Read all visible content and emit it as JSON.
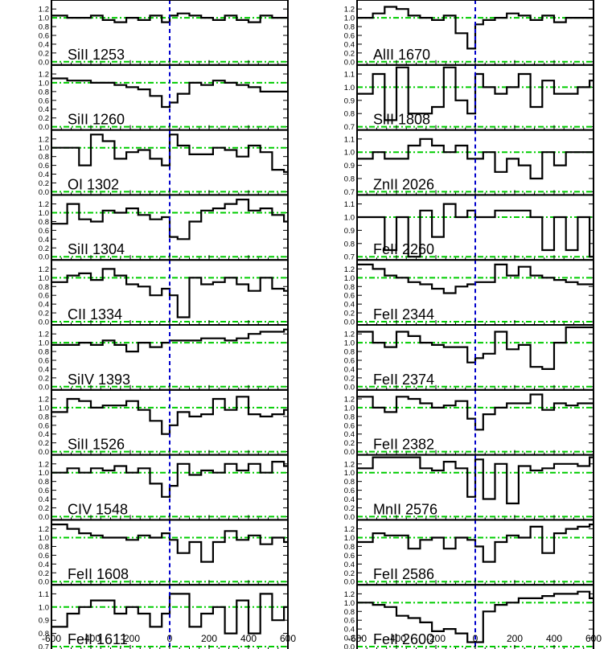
{
  "chart_data": {
    "type": "line",
    "layout": "velocity stack",
    "x_axis": {
      "range": [
        -600,
        600
      ],
      "tick_labels": [
        "-600",
        "-400",
        "-200",
        "0",
        "200",
        "400",
        "600"
      ]
    },
    "reference_lines": {
      "vertical_x": 0,
      "vertical_color": "#0000cc",
      "horizontal_color": "#00cc00"
    },
    "bins_x": [
      -600,
      -520,
      -460,
      -400,
      -340,
      -280,
      -220,
      -160,
      -100,
      -40,
      0,
      40,
      100,
      160,
      220,
      280,
      340,
      400,
      460,
      520,
      580,
      600
    ],
    "panels": [
      {
        "name": "SiII 1253",
        "column": "left",
        "ylim": [
          0.0,
          1.35
        ],
        "yticks": [
          "0.0",
          "0.2",
          "0.4",
          "0.6",
          "0.8",
          "1.0",
          "1.2"
        ],
        "hlines": [
          0.0,
          1.0
        ],
        "flux": [
          1.05,
          1.0,
          1.0,
          1.05,
          0.95,
          0.9,
          1.0,
          0.95,
          1.05,
          0.9,
          1.05,
          1.1,
          1.05,
          1.0,
          0.95,
          1.05,
          0.95,
          0.9,
          1.05,
          1.0,
          1.0
        ]
      },
      {
        "name": "SiII 1260",
        "column": "left",
        "ylim": [
          0.0,
          1.35
        ],
        "yticks": [
          "0.0",
          "0.2",
          "0.4",
          "0.6",
          "0.8",
          "1.0",
          "1.2"
        ],
        "hlines": [
          0.0,
          1.0
        ],
        "flux": [
          1.1,
          1.05,
          1.05,
          1.0,
          1.0,
          0.95,
          0.9,
          0.85,
          0.7,
          0.45,
          0.55,
          0.75,
          1.0,
          0.95,
          1.05,
          1.0,
          0.95,
          0.9,
          0.8,
          0.8,
          0.8
        ]
      },
      {
        "name": "OI 1302",
        "column": "left",
        "ylim": [
          0.0,
          1.35
        ],
        "yticks": [
          "0.0",
          "0.2",
          "0.4",
          "0.6",
          "0.8",
          "1.0",
          "1.2"
        ],
        "hlines": [
          0.0,
          1.0
        ],
        "flux": [
          1.0,
          1.0,
          0.6,
          1.3,
          1.15,
          0.75,
          0.9,
          0.95,
          0.75,
          0.6,
          1.3,
          1.05,
          0.85,
          0.85,
          1.0,
          0.95,
          0.8,
          1.05,
          0.9,
          0.5,
          0.45
        ]
      },
      {
        "name": "SiII 1304",
        "column": "left",
        "ylim": [
          0.0,
          1.35
        ],
        "yticks": [
          "0.0",
          "0.2",
          "0.4",
          "0.6",
          "0.8",
          "1.0",
          "1.2"
        ],
        "hlines": [
          0.0,
          1.0
        ],
        "flux": [
          0.75,
          1.2,
          0.85,
          0.8,
          1.05,
          1.0,
          1.1,
          0.95,
          0.85,
          0.9,
          0.45,
          0.4,
          0.8,
          1.05,
          1.1,
          1.2,
          1.3,
          1.05,
          1.1,
          0.95,
          0.8
        ]
      },
      {
        "name": "CII 1334",
        "column": "left",
        "ylim": [
          0.0,
          1.35
        ],
        "yticks": [
          "0.0",
          "0.2",
          "0.4",
          "0.6",
          "0.8",
          "1.0",
          "1.2"
        ],
        "hlines": [
          0.0,
          1.0
        ],
        "flux": [
          0.9,
          1.05,
          1.1,
          0.95,
          1.2,
          1.05,
          0.85,
          0.8,
          0.6,
          0.75,
          0.6,
          0.1,
          1.0,
          0.85,
          0.9,
          1.0,
          0.85,
          0.7,
          1.0,
          0.75,
          0.7
        ]
      },
      {
        "name": "SiIV 1393",
        "column": "left",
        "ylim": [
          0.0,
          1.35
        ],
        "yticks": [
          "0.0",
          "0.2",
          "0.4",
          "0.6",
          "0.8",
          "1.0",
          "1.2"
        ],
        "hlines": [
          0.0,
          1.0
        ],
        "flux": [
          0.95,
          0.95,
          1.0,
          0.95,
          1.05,
          0.95,
          0.8,
          1.0,
          0.9,
          1.0,
          1.05,
          1.05,
          1.05,
          1.1,
          1.1,
          1.05,
          1.1,
          1.2,
          1.25,
          1.25,
          1.3
        ]
      },
      {
        "name": "SiII 1526",
        "column": "left",
        "ylim": [
          0.0,
          1.35
        ],
        "yticks": [
          "0.0",
          "0.2",
          "0.4",
          "0.6",
          "0.8",
          "1.0",
          "1.2"
        ],
        "hlines": [
          0.0,
          1.0
        ],
        "flux": [
          0.9,
          1.2,
          1.15,
          1.0,
          1.05,
          1.05,
          1.15,
          0.95,
          0.7,
          0.4,
          0.6,
          0.9,
          0.8,
          0.85,
          1.2,
          0.95,
          1.25,
          0.85,
          0.8,
          0.85,
          0.95
        ]
      },
      {
        "name": "CIV 1548",
        "column": "left",
        "ylim": [
          0.0,
          1.35
        ],
        "yticks": [
          "0.0",
          "0.2",
          "0.4",
          "0.6",
          "0.8",
          "1.0",
          "1.2"
        ],
        "hlines": [
          0.0,
          1.0
        ],
        "flux": [
          1.0,
          1.1,
          1.0,
          1.1,
          1.05,
          1.15,
          1.0,
          1.1,
          0.75,
          0.45,
          0.7,
          1.2,
          0.95,
          1.05,
          1.0,
          1.2,
          1.05,
          1.2,
          1.0,
          1.25,
          1.15
        ]
      },
      {
        "name": "FeII 1608",
        "column": "left",
        "ylim": [
          0.0,
          1.35
        ],
        "yticks": [
          "0.0",
          "0.2",
          "0.4",
          "0.6",
          "0.8",
          "1.0",
          "1.2"
        ],
        "hlines": [
          0.0,
          1.0
        ],
        "flux": [
          1.3,
          1.2,
          1.1,
          1.05,
          1.0,
          1.0,
          0.95,
          1.05,
          1.0,
          1.1,
          0.95,
          0.65,
          0.9,
          0.45,
          0.9,
          1.15,
          0.95,
          1.05,
          0.85,
          1.0,
          0.9
        ]
      },
      {
        "name": "FeII 1611",
        "column": "left",
        "ylim": [
          0.7,
          1.15
        ],
        "yticks": [
          "0.7",
          "0.8",
          "0.9",
          "1.0",
          "1.1"
        ],
        "hlines": [
          0.7,
          1.0
        ],
        "flux": [
          0.85,
          0.95,
          1.0,
          1.05,
          1.05,
          0.95,
          1.0,
          0.95,
          0.85,
          0.95,
          1.1,
          1.1,
          0.85,
          0.95,
          1.0,
          0.8,
          1.05,
          0.8,
          1.1,
          0.9,
          1.0
        ]
      },
      {
        "name": "AlII 1670",
        "column": "right",
        "ylim": [
          0.0,
          1.35
        ],
        "yticks": [
          "0.0",
          "0.2",
          "0.4",
          "0.6",
          "0.8",
          "1.0",
          "1.2"
        ],
        "hlines": [
          0.0,
          1.0
        ],
        "flux": [
          1.0,
          1.1,
          1.25,
          1.2,
          1.05,
          1.0,
          0.95,
          1.05,
          0.65,
          0.3,
          0.85,
          0.95,
          1.0,
          1.1,
          1.05,
          0.95,
          1.05,
          0.9,
          1.0,
          1.0,
          1.0
        ]
      },
      {
        "name": "SiII 1808",
        "column": "right",
        "ylim": [
          0.7,
          1.15
        ],
        "yticks": [
          "0.7",
          "0.8",
          "0.9",
          "1.0",
          "1.1"
        ],
        "hlines": [
          0.7,
          1.0
        ],
        "flux": [
          0.95,
          1.1,
          0.75,
          1.15,
          0.8,
          0.8,
          0.85,
          1.15,
          0.9,
          0.8,
          1.1,
          1.0,
          0.95,
          1.0,
          1.1,
          0.85,
          1.05,
          0.95,
          0.95,
          1.0,
          1.05
        ]
      },
      {
        "name": "ZnII 2026",
        "column": "right",
        "ylim": [
          0.7,
          1.15
        ],
        "yticks": [
          "0.7",
          "0.8",
          "0.9",
          "1.0",
          "1.1"
        ],
        "hlines": [
          0.7,
          1.0
        ],
        "flux": [
          0.95,
          1.0,
          0.95,
          0.95,
          1.05,
          1.1,
          1.05,
          1.0,
          1.05,
          0.95,
          0.95,
          1.0,
          0.85,
          0.95,
          0.9,
          0.8,
          1.0,
          0.9,
          1.0,
          1.0,
          1.0
        ]
      },
      {
        "name": "FeII 2260",
        "column": "right",
        "ylim": [
          0.7,
          1.15
        ],
        "yticks": [
          "0.7",
          "0.8",
          "0.9",
          "1.0",
          "1.1"
        ],
        "hlines": [
          0.7,
          1.0
        ],
        "flux": [
          1.0,
          1.0,
          0.75,
          1.0,
          0.7,
          1.05,
          0.85,
          1.1,
          1.0,
          1.05,
          1.0,
          1.0,
          1.05,
          1.05,
          1.05,
          1.0,
          0.75,
          1.0,
          0.75,
          1.0,
          0.7
        ]
      },
      {
        "name": "FeII 2344",
        "column": "right",
        "ylim": [
          0.0,
          1.35
        ],
        "yticks": [
          "0.0",
          "0.2",
          "0.4",
          "0.6",
          "0.8",
          "1.0",
          "1.2"
        ],
        "hlines": [
          0.0,
          1.0
        ],
        "flux": [
          1.3,
          1.2,
          1.05,
          1.0,
          0.9,
          0.85,
          0.75,
          0.65,
          0.8,
          0.85,
          0.9,
          0.9,
          1.3,
          1.05,
          1.25,
          1.05,
          1.0,
          0.95,
          0.9,
          0.85,
          0.85
        ]
      },
      {
        "name": "FeII 2374",
        "column": "right",
        "ylim": [
          0.0,
          1.35
        ],
        "yticks": [
          "0.0",
          "0.2",
          "0.4",
          "0.6",
          "0.8",
          "1.0",
          "1.2"
        ],
        "hlines": [
          0.0,
          1.0
        ],
        "flux": [
          1.25,
          1.0,
          0.9,
          1.25,
          1.15,
          1.0,
          0.95,
          0.9,
          0.9,
          0.55,
          0.65,
          0.75,
          1.25,
          0.85,
          0.95,
          0.45,
          0.4,
          1.0,
          1.35,
          1.35,
          1.35
        ]
      },
      {
        "name": "FeII 2382",
        "column": "right",
        "ylim": [
          0.0,
          1.35
        ],
        "yticks": [
          "0.0",
          "0.2",
          "0.4",
          "0.6",
          "0.8",
          "1.0",
          "1.2"
        ],
        "hlines": [
          0.0,
          1.0
        ],
        "flux": [
          1.25,
          1.0,
          0.9,
          1.25,
          1.2,
          1.1,
          1.0,
          1.05,
          1.15,
          0.75,
          0.5,
          0.85,
          1.0,
          1.1,
          1.1,
          1.3,
          0.95,
          1.1,
          1.05,
          1.1,
          1.1
        ]
      },
      {
        "name": "MnII 2576",
        "column": "right",
        "ylim": [
          0.0,
          1.35
        ],
        "yticks": [
          "0.0",
          "0.2",
          "0.4",
          "0.6",
          "0.8",
          "1.0",
          "1.2"
        ],
        "hlines": [
          0.0,
          1.0
        ],
        "flux": [
          1.1,
          1.35,
          1.35,
          1.35,
          1.35,
          1.1,
          1.05,
          1.25,
          1.1,
          0.45,
          1.3,
          0.4,
          1.2,
          0.3,
          1.15,
          1.05,
          1.1,
          1.2,
          1.2,
          1.15,
          1.35
        ]
      },
      {
        "name": "FeII 2586",
        "column": "right",
        "ylim": [
          0.0,
          1.35
        ],
        "yticks": [
          "0.0",
          "0.2",
          "0.4",
          "0.6",
          "0.8",
          "1.0",
          "1.2"
        ],
        "hlines": [
          0.0,
          1.0
        ],
        "flux": [
          0.9,
          1.1,
          1.05,
          1.05,
          0.75,
          0.95,
          1.0,
          0.75,
          1.0,
          0.95,
          0.8,
          0.45,
          0.9,
          1.05,
          1.0,
          1.25,
          0.65,
          1.1,
          1.2,
          1.25,
          1.3
        ]
      },
      {
        "name": "FeII 2600",
        "column": "right",
        "ylim": [
          0.0,
          1.35
        ],
        "yticks": [
          "0.0",
          "0.2",
          "0.4",
          "0.6",
          "0.8",
          "1.0",
          "1.2"
        ],
        "hlines": [
          0.0,
          1.0
        ],
        "flux": [
          1.0,
          0.95,
          0.9,
          0.7,
          0.65,
          0.55,
          0.35,
          0.4,
          0.3,
          0.1,
          0.1,
          0.8,
          0.95,
          1.0,
          1.1,
          1.1,
          1.15,
          1.2,
          1.2,
          1.25,
          1.1
        ]
      }
    ]
  }
}
